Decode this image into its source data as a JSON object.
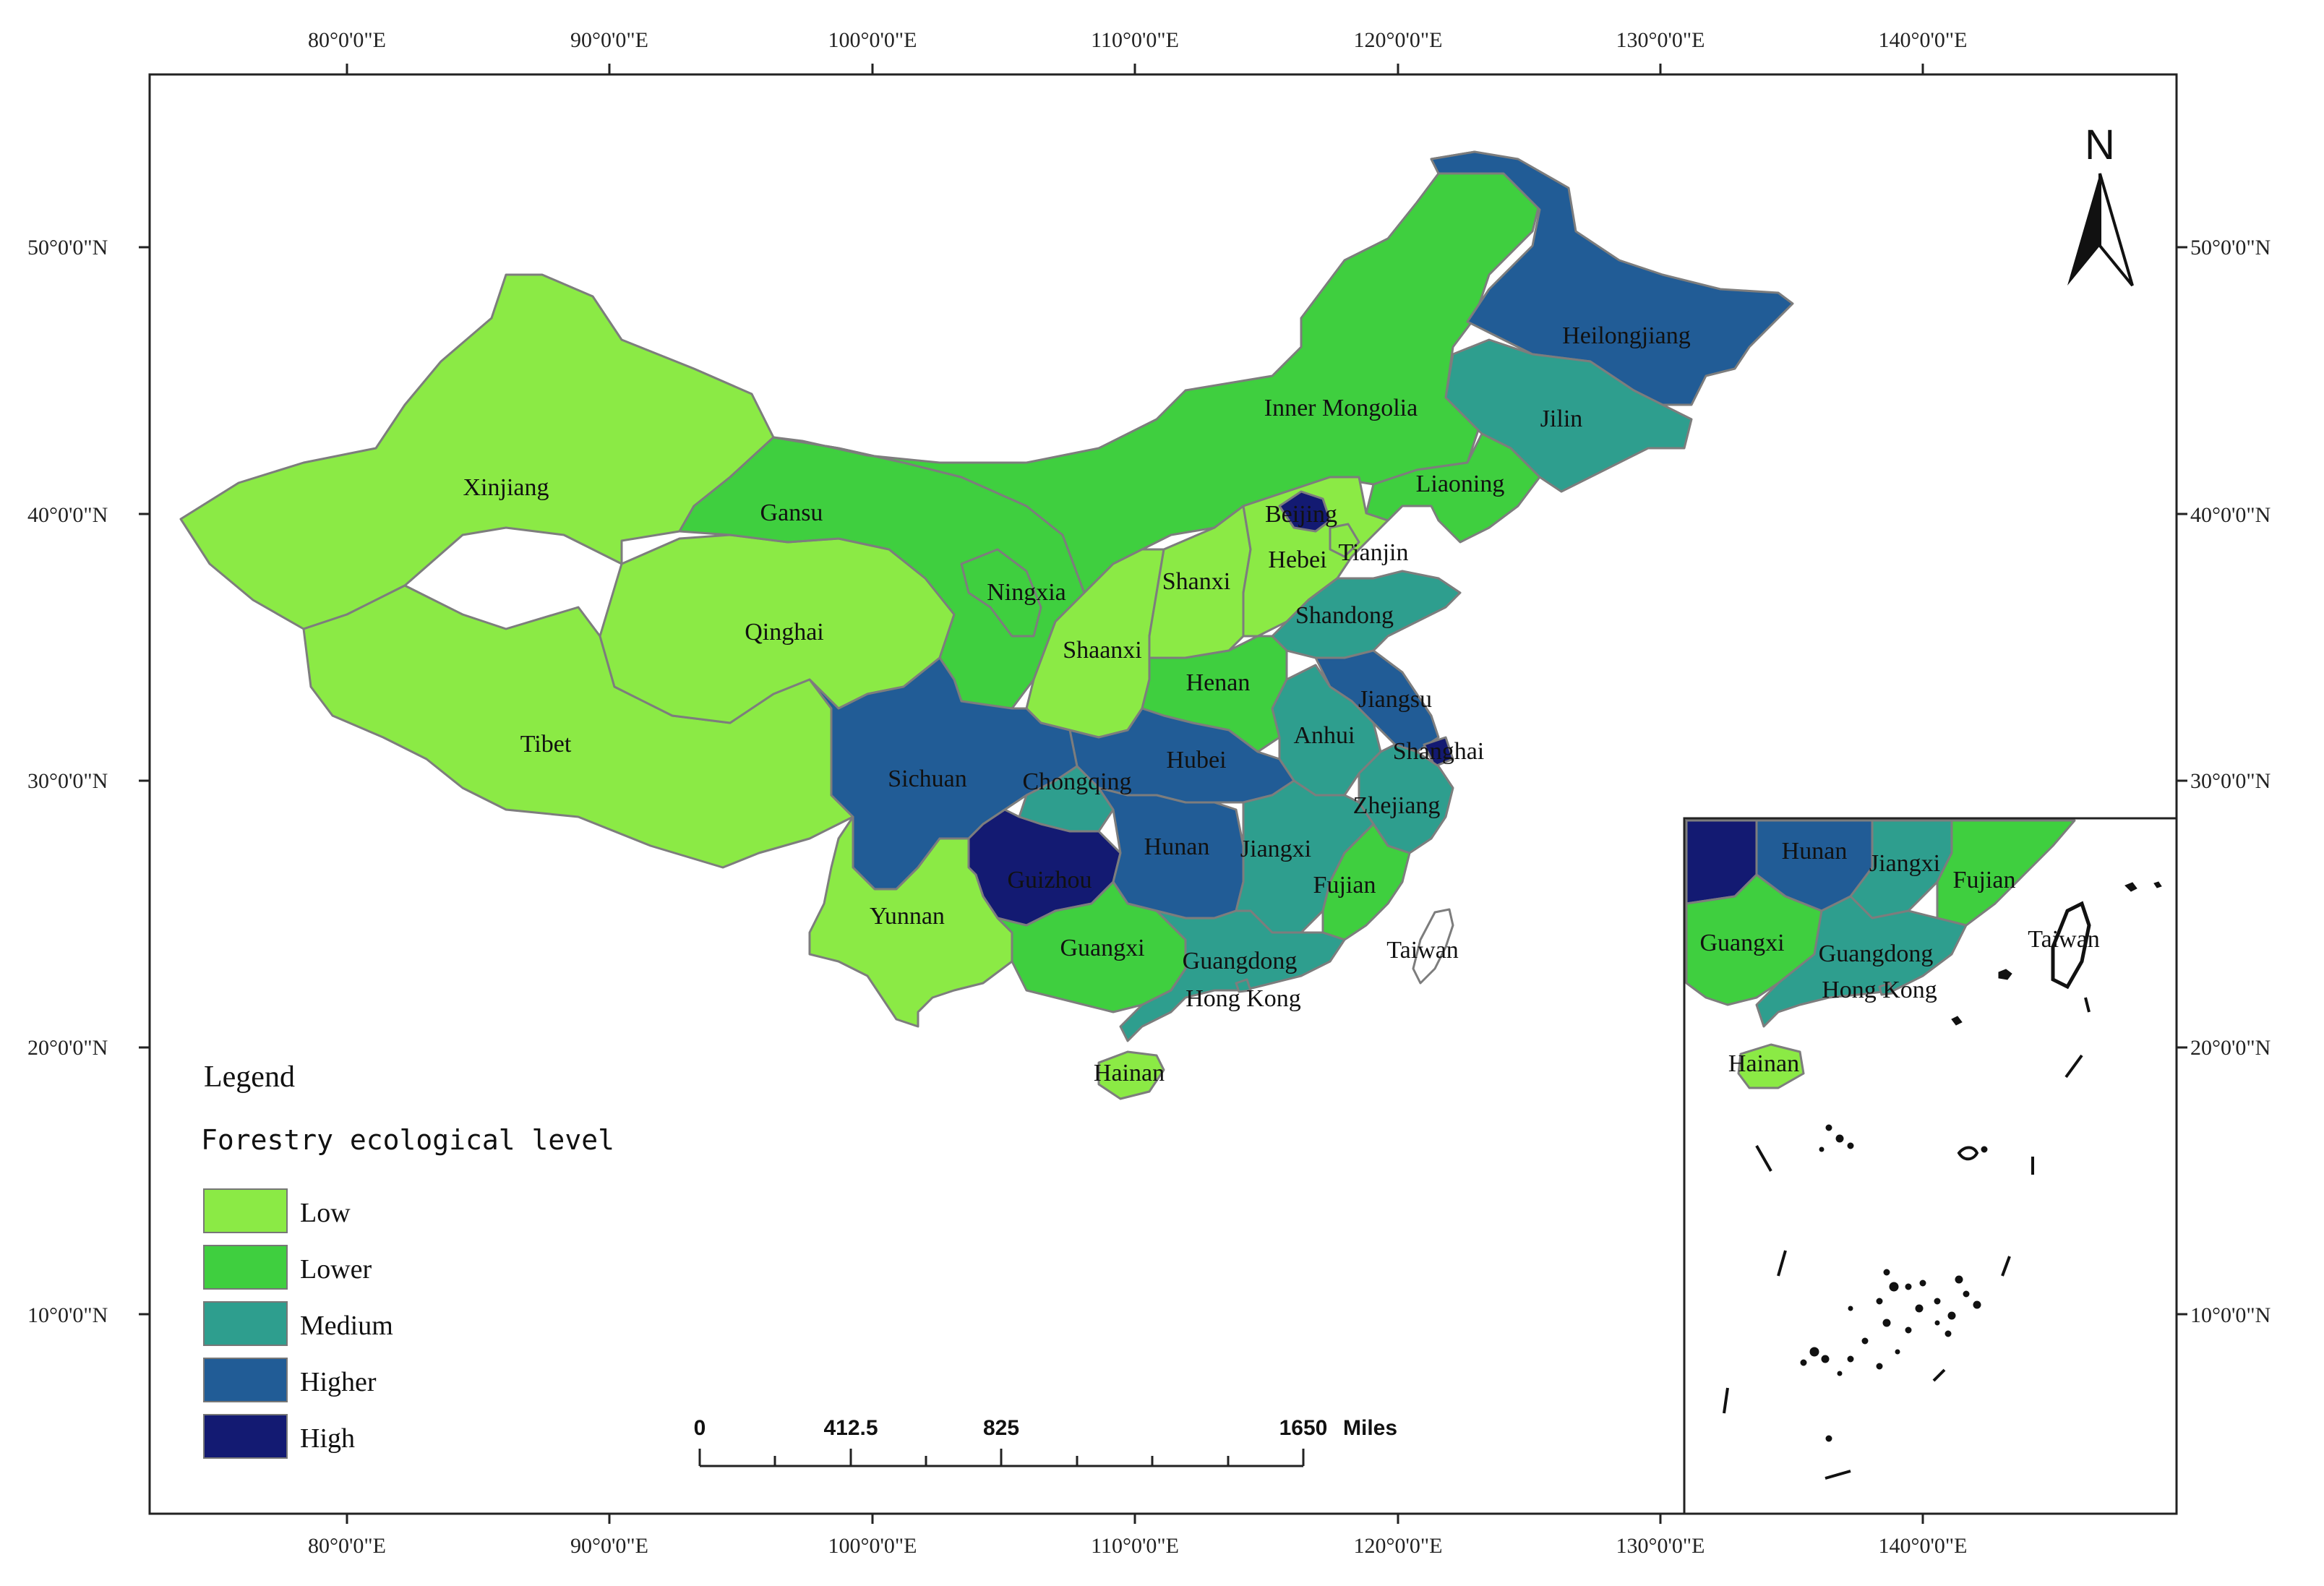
{
  "colors": {
    "Low": "#8BEA45",
    "Lower": "#3FCF3F",
    "Medium": "#2E9E8E",
    "Higher": "#215C96",
    "High": "#131A72"
  },
  "top_axis_labels": [
    "80°0'0\"E",
    "90°0'0\"E",
    "100°0'0\"E",
    "110°0'0\"E",
    "120°0'0\"E",
    "130°0'0\"E",
    "140°0'0\"E"
  ],
  "bottom_axis_labels": [
    "80°0'0\"E",
    "90°0'0\"E",
    "100°0'0\"E",
    "110°0'0\"E",
    "120°0'0\"E",
    "130°0'0\"E",
    "140°0'0\"E"
  ],
  "left_axis_labels": [
    "50°0'0\"N",
    "40°0'0\"N",
    "30°0'0\"N",
    "20°0'0\"N",
    "10°0'0\"N"
  ],
  "right_axis_labels": [
    "50°0'0\"N",
    "40°0'0\"N",
    "30°0'0\"N",
    "20°0'0\"N",
    "10°0'0\"N"
  ],
  "legend": {
    "title": "Legend",
    "subtitle": "Forestry ecological level",
    "items": [
      {
        "label": "Low",
        "level": "Low"
      },
      {
        "label": "Lower",
        "level": "Lower"
      },
      {
        "label": "Medium",
        "level": "Medium"
      },
      {
        "label": "Higher",
        "level": "Higher"
      },
      {
        "label": "High",
        "level": "High"
      }
    ]
  },
  "north_arrow": "N",
  "scale_bar": {
    "labels": [
      "0",
      "412.5",
      "825",
      "1650"
    ],
    "unit": "Miles"
  },
  "provinces": [
    {
      "name": "Xinjiang",
      "level": "Low"
    },
    {
      "name": "Tibet",
      "level": "Low"
    },
    {
      "name": "Qinghai",
      "level": "Low"
    },
    {
      "name": "Gansu",
      "level": "Lower"
    },
    {
      "name": "Inner Mongolia",
      "level": "Lower"
    },
    {
      "name": "Ningxia",
      "level": "Lower"
    },
    {
      "name": "Shaanxi",
      "level": "Low"
    },
    {
      "name": "Shanxi",
      "level": "Low"
    },
    {
      "name": "Hebei",
      "level": "Low"
    },
    {
      "name": "Beijing",
      "level": "High"
    },
    {
      "name": "Tianjin",
      "level": "Low"
    },
    {
      "name": "Liaoning",
      "level": "Lower"
    },
    {
      "name": "Jilin",
      "level": "Medium"
    },
    {
      "name": "Heilongjiang",
      "level": "Higher"
    },
    {
      "name": "Shandong",
      "level": "Medium"
    },
    {
      "name": "Henan",
      "level": "Lower"
    },
    {
      "name": "Jiangsu",
      "level": "Higher"
    },
    {
      "name": "Anhui",
      "level": "Medium"
    },
    {
      "name": "Shanghai",
      "level": "High"
    },
    {
      "name": "Hubei",
      "level": "Higher"
    },
    {
      "name": "Sichuan",
      "level": "Higher"
    },
    {
      "name": "Chongqing",
      "level": "Medium"
    },
    {
      "name": "Zhejiang",
      "level": "Medium"
    },
    {
      "name": "Hunan",
      "level": "Higher"
    },
    {
      "name": "Jiangxi",
      "level": "Medium"
    },
    {
      "name": "Guizhou",
      "level": "High"
    },
    {
      "name": "Yunnan",
      "level": "Low"
    },
    {
      "name": "Fujian",
      "level": "Lower"
    },
    {
      "name": "Guangxi",
      "level": "Lower"
    },
    {
      "name": "Guangdong",
      "level": "Medium"
    },
    {
      "name": "Hong Kong",
      "level": "Medium"
    },
    {
      "name": "Taiwan",
      "level": "none"
    },
    {
      "name": "Hainan",
      "level": "Low"
    }
  ],
  "inset_labels": [
    {
      "name": "Hunan",
      "level": "Higher"
    },
    {
      "name": "Jiangxi",
      "level": "Medium"
    },
    {
      "name": "Fujian",
      "level": "Lower"
    },
    {
      "name": "Guangxi",
      "level": "Lower"
    },
    {
      "name": "Guangdong",
      "level": "Medium"
    },
    {
      "name": "Taiwan",
      "level": "none"
    },
    {
      "name": "Hong Kong",
      "level": "Medium"
    },
    {
      "name": "Hainan",
      "level": "Low"
    }
  ]
}
